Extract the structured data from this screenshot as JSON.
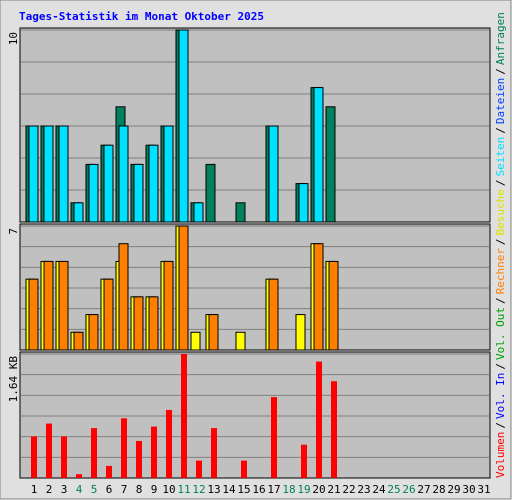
{
  "title": "Tages-Statistik im Monat Oktober 2025",
  "separator": "/",
  "legend": [
    {
      "text": "Volumen",
      "color": "#ff0000"
    },
    {
      "text": "Vol. In",
      "color": "#0000ff"
    },
    {
      "text": "Vol. Out",
      "color": "#00a000"
    },
    {
      "text": "Rechner",
      "color": "#ff8000"
    },
    {
      "text": "Besuche",
      "color": "#e0e000"
    },
    {
      "text": "Seiten",
      "color": "#00e0ff"
    },
    {
      "text": "Dateien",
      "color": "#0040ff"
    },
    {
      "text": "Anfragen",
      "color": "#00805c"
    }
  ],
  "x_axis": {
    "categories": [
      "1",
      "2",
      "3",
      "4",
      "5",
      "6",
      "7",
      "8",
      "9",
      "10",
      "11",
      "12",
      "13",
      "14",
      "15",
      "16",
      "17",
      "18",
      "19",
      "20",
      "21",
      "22",
      "23",
      "24",
      "25",
      "26",
      "27",
      "28",
      "29",
      "30",
      "31"
    ],
    "colors": [
      "#000000",
      "#000000",
      "#000000",
      "#00805c",
      "#00805c",
      "#000000",
      "#000000",
      "#000000",
      "#000000",
      "#000000",
      "#00805c",
      "#00805c",
      "#000000",
      "#000000",
      "#000000",
      "#000000",
      "#000000",
      "#00805c",
      "#00805c",
      "#000000",
      "#000000",
      "#000000",
      "#000000",
      "#000000",
      "#00805c",
      "#00805c",
      "#000000",
      "#000000",
      "#000000",
      "#000000",
      "#000000"
    ]
  },
  "chart_data": [
    {
      "type": "bar",
      "ylim": [
        0,
        10
      ],
      "yticks": [
        10
      ],
      "series": [
        {
          "color": "#00805c",
          "values": [
            5,
            5,
            5,
            1,
            3,
            4,
            6,
            3,
            4,
            5,
            10,
            1,
            3,
            0,
            1,
            0,
            5,
            0,
            2,
            7,
            6,
            0,
            0,
            0,
            0,
            0,
            0,
            0,
            0,
            0,
            0
          ]
        },
        {
          "color": "#00e0ff",
          "values": [
            5,
            5,
            5,
            1,
            3,
            4,
            5,
            3,
            4,
            5,
            10,
            1,
            0,
            0,
            0,
            0,
            5,
            0,
            2,
            7,
            0,
            0,
            0,
            0,
            0,
            0,
            0,
            0,
            0,
            0,
            0
          ]
        }
      ]
    },
    {
      "type": "bar",
      "ylim": [
        0,
        7
      ],
      "yticks": [
        7
      ],
      "series": [
        {
          "color": "#ffff00",
          "values": [
            4,
            5,
            5,
            1,
            2,
            4,
            5,
            3,
            3,
            5,
            7,
            1,
            2,
            0,
            1,
            0,
            4,
            0,
            2,
            6,
            5,
            0,
            0,
            0,
            0,
            0,
            0,
            0,
            0,
            0,
            0
          ]
        },
        {
          "color": "#ff8000",
          "values": [
            4,
            5,
            5,
            1,
            2,
            4,
            6,
            3,
            3,
            5,
            7,
            0,
            2,
            0,
            0,
            0,
            4,
            0,
            0,
            6,
            5,
            0,
            0,
            0,
            0,
            0,
            0,
            0,
            0,
            0,
            0
          ]
        }
      ]
    },
    {
      "type": "bar",
      "ylim": [
        0,
        1.64
      ],
      "yticks": [
        {
          "value": 1.64,
          "label": "1.64 KB"
        }
      ],
      "series": [
        {
          "color": "#ff0000",
          "values": [
            0.55,
            0.72,
            0.55,
            0.05,
            0.66,
            0.16,
            0.79,
            0.49,
            0.68,
            0.9,
            1.64,
            0.23,
            0.66,
            0,
            0.23,
            0,
            1.07,
            0,
            0.44,
            1.54,
            1.28,
            0,
            0,
            0,
            0,
            0,
            0,
            0,
            0,
            0,
            0
          ]
        }
      ]
    }
  ]
}
